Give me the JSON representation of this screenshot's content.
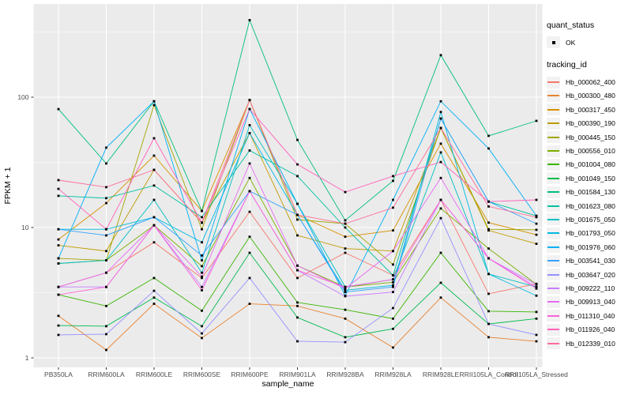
{
  "figure": {
    "background": "#FFFFFF",
    "panel_background": "#EBEBEB",
    "grid_color": "#FFFFFF",
    "point_color": "#000000",
    "axis_text_color": "#4D4D4D",
    "tick_color": "#333333",
    "title_text_color": "#000000"
  },
  "axes": {
    "x_label": "sample_name",
    "y_label": "FPKM + 1",
    "y_scale": "log10",
    "y_ticks": [
      "1",
      "10",
      "100"
    ],
    "y_tick_values": [
      1,
      10,
      100
    ],
    "y_minor_values": [
      3.162,
      31.62,
      316.2
    ]
  },
  "legend": {
    "quant_status_title": "quant_status",
    "quant_status_items": [
      {
        "label": "OK",
        "marker": "black-square-point"
      }
    ],
    "tracking_title": "tracking_id"
  },
  "chart_data": {
    "type": "line",
    "title": "",
    "xlabel": "sample_name",
    "ylabel": "FPKM + 1",
    "y_scale": "log10",
    "ylim": [
      0.66,
      512
    ],
    "grid": true,
    "legend_position": "right",
    "marker": "small black square at every point",
    "categories": [
      "PB350LA",
      "RRIM600LA",
      "RRIM600LE",
      "RRIM600SE",
      "RRIM600PE",
      "RRIM901LA",
      "RRIM928BA",
      "RRIM928LA",
      "RRIM928LE",
      "RRII105LA_Control",
      "RRII105LA_Stressed"
    ],
    "series": [
      {
        "name": "Hb_000062_400",
        "color": "#F8766D",
        "values": [
          3.5,
          4.5,
          7.7,
          4.1,
          13.2,
          4.1,
          6.4,
          4.3,
          16.3,
          3.1,
          3.7
        ]
      },
      {
        "name": "Hb_000300_480",
        "color": "#EA8331",
        "values": [
          2.1,
          1.15,
          2.6,
          1.42,
          2.6,
          2.5,
          2.0,
          1.2,
          2.9,
          1.44,
          1.34
        ]
      },
      {
        "name": "Hb_000317_450",
        "color": "#D89000",
        "values": [
          8.1,
          15.4,
          35.6,
          13.4,
          95,
          12.5,
          8.5,
          9.5,
          44,
          10.9,
          8.8
        ]
      },
      {
        "name": "Hb_000390_190",
        "color": "#C09B00",
        "values": [
          7.3,
          6.6,
          27.7,
          10.9,
          53,
          8.7,
          6.9,
          6.6,
          58,
          9.5,
          7.5
        ]
      },
      {
        "name": "Hb_000445_150",
        "color": "#A3A500",
        "values": [
          5.8,
          5.6,
          87,
          9.7,
          95,
          11.5,
          10.7,
          5.2,
          58,
          9.7,
          9.6
        ]
      },
      {
        "name": "Hb_000556_010",
        "color": "#7CAE00",
        "values": [
          5.3,
          5.6,
          10.4,
          5.05,
          24,
          5.1,
          3.5,
          3.8,
          14,
          6.9,
          3.66
        ]
      },
      {
        "name": "Hb_001004_080",
        "color": "#39B600",
        "values": [
          3.05,
          2.5,
          4.1,
          2.3,
          8.5,
          2.66,
          2.34,
          2.0,
          6.4,
          2.28,
          2.25
        ]
      },
      {
        "name": "Hb_001049_150",
        "color": "#00BB4E",
        "values": [
          1.77,
          1.75,
          2.9,
          1.75,
          6.4,
          2.04,
          1.44,
          1.67,
          3.77,
          1.82,
          2.0
        ]
      },
      {
        "name": "Hb_001584_130",
        "color": "#00BF7D",
        "values": [
          81,
          31,
          93,
          13.4,
          390,
          47,
          11.35,
          22.8,
          210,
          50.5,
          65.8
        ]
      },
      {
        "name": "Hb_001623_080",
        "color": "#00C1A3",
        "values": [
          17.5,
          16.8,
          21,
          12.0,
          39,
          24.8,
          10.0,
          4.3,
          68.5,
          15.8,
          12.3
        ]
      },
      {
        "name": "Hb_001675_050",
        "color": "#00BFC4",
        "values": [
          5.3,
          5.6,
          16.3,
          4.5,
          61,
          15.2,
          3.5,
          4.0,
          37.7,
          4.4,
          3.5
        ]
      },
      {
        "name": "Hb_001793_050",
        "color": "#00BAE0",
        "values": [
          9.7,
          9.7,
          12.0,
          7.7,
          53,
          12.5,
          3.3,
          3.6,
          77,
          4.4,
          3.0
        ]
      },
      {
        "name": "Hb_001976_060",
        "color": "#00B0F6",
        "values": [
          5.8,
          41,
          93,
          5.6,
          81,
          15.2,
          3.0,
          16.3,
          93,
          40.4,
          12.3
        ]
      },
      {
        "name": "Hb_003541_030",
        "color": "#35A2FF",
        "values": [
          9.7,
          8.7,
          12.0,
          6.1,
          19,
          12.5,
          3.2,
          3.5,
          68.5,
          15.8,
          10.7
        ]
      },
      {
        "name": "Hb_003647_020",
        "color": "#9590FF",
        "values": [
          1.5,
          1.52,
          3.27,
          1.54,
          4.1,
          1.34,
          1.32,
          2.41,
          11.8,
          1.82,
          1.5
        ]
      },
      {
        "name": "Hb_009222_110",
        "color": "#C77CFF",
        "values": [
          3.5,
          3.5,
          10.4,
          3.5,
          19,
          4.7,
          2.97,
          3.2,
          16.3,
          5.8,
          3.66
        ]
      },
      {
        "name": "Hb_009913_040",
        "color": "#E76BF3",
        "values": [
          3.5,
          4.5,
          10.4,
          4.2,
          31,
          5.1,
          3.4,
          6.6,
          24,
          5.8,
          3.5
        ]
      },
      {
        "name": "Hb_011310_040",
        "color": "#FA62DB",
        "values": [
          3.05,
          3.5,
          10.4,
          3.3,
          19,
          4.7,
          3.5,
          4.0,
          16.3,
          5.8,
          3.4
        ]
      },
      {
        "name": "Hb_011926_040",
        "color": "#FF62BC",
        "values": [
          19.8,
          9.7,
          48.4,
          10.9,
          81,
          30.5,
          18.7,
          24.8,
          31.8,
          15.8,
          16.3
        ]
      },
      {
        "name": "Hb_012339_010",
        "color": "#FF6A98",
        "values": [
          23.1,
          20.4,
          27.7,
          10.9,
          95,
          12.5,
          10.7,
          14.2,
          58,
          14.5,
          12.0
        ]
      }
    ]
  }
}
